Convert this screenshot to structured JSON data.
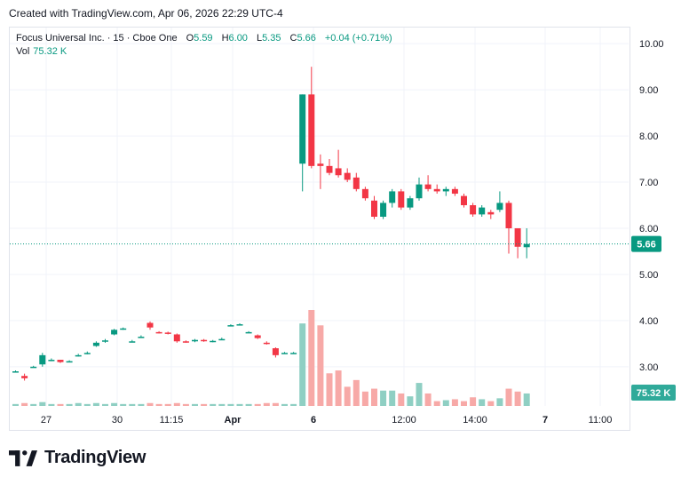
{
  "header": {
    "created_text": "Created with TradingView.com, Apr 06, 2026 22:29 UTC-4"
  },
  "legend": {
    "symbol": "Focus Universal Inc. · 15 · Cboe One",
    "open_label": "O",
    "open": "5.59",
    "high_label": "H",
    "high": "6.00",
    "low_label": "L",
    "low": "5.35",
    "close_label": "C",
    "close": "5.66",
    "change": "+0.04 (+0.71%)",
    "vol_label": "Vol",
    "vol": "75.32 K"
  },
  "brand": {
    "name": "TradingView"
  },
  "colors": {
    "up": "#089981",
    "down": "#f23645",
    "vol_up": "#8fcfc3",
    "vol_down": "#f7a9a7",
    "last_price": "#089981"
  },
  "chart_data": {
    "type": "candlestick",
    "y_ticks": [
      "10.00",
      "9.00",
      "8.00",
      "7.00",
      "6.00",
      "5.00",
      "4.00",
      "3.00"
    ],
    "y_range": [
      2.15,
      10.35
    ],
    "x_ticks": [
      "27",
      "30",
      "11:15",
      "Apr",
      "6",
      "12:00",
      "14:00",
      "7",
      "11:00"
    ],
    "last_price": "5.66",
    "last_volume": "75.32 K",
    "candles": [
      [
        2.9,
        2.92,
        2.88,
        2.9
      ],
      [
        2.8,
        2.85,
        2.7,
        2.75
      ],
      [
        3.0,
        3.02,
        2.98,
        3.0
      ],
      [
        3.05,
        3.3,
        3.0,
        3.25
      ],
      [
        3.15,
        3.18,
        3.12,
        3.15
      ],
      [
        3.15,
        3.15,
        3.08,
        3.1
      ],
      [
        3.12,
        3.14,
        3.1,
        3.12
      ],
      [
        3.25,
        3.28,
        3.22,
        3.25
      ],
      [
        3.3,
        3.33,
        3.27,
        3.3
      ],
      [
        3.45,
        3.55,
        3.43,
        3.52
      ],
      [
        3.55,
        3.6,
        3.52,
        3.57
      ],
      [
        3.7,
        3.82,
        3.68,
        3.8
      ],
      [
        3.82,
        3.85,
        3.8,
        3.83
      ],
      [
        3.55,
        3.58,
        3.53,
        3.55
      ],
      [
        3.65,
        3.68,
        3.63,
        3.65
      ],
      [
        3.95,
        3.98,
        3.8,
        3.85
      ],
      [
        3.75,
        3.77,
        3.72,
        3.74
      ],
      [
        3.74,
        3.76,
        3.7,
        3.72
      ],
      [
        3.7,
        3.72,
        3.52,
        3.55
      ],
      [
        3.55,
        3.57,
        3.52,
        3.54
      ],
      [
        3.55,
        3.6,
        3.53,
        3.58
      ],
      [
        3.58,
        3.6,
        3.54,
        3.56
      ],
      [
        3.55,
        3.58,
        3.53,
        3.56
      ],
      [
        3.6,
        3.63,
        3.58,
        3.6
      ],
      [
        3.9,
        3.92,
        3.88,
        3.9
      ],
      [
        3.92,
        3.94,
        3.9,
        3.92
      ],
      [
        3.75,
        3.77,
        3.73,
        3.75
      ],
      [
        3.68,
        3.7,
        3.6,
        3.62
      ],
      [
        3.52,
        3.55,
        3.48,
        3.5
      ],
      [
        3.4,
        3.42,
        3.2,
        3.25
      ],
      [
        3.3,
        3.32,
        3.28,
        3.3
      ],
      [
        3.3,
        3.32,
        3.28,
        3.3
      ],
      [
        7.4,
        8.9,
        6.8,
        8.9
      ],
      [
        8.9,
        9.5,
        7.3,
        7.35
      ],
      [
        7.4,
        7.6,
        6.85,
        7.35
      ],
      [
        7.35,
        7.5,
        7.15,
        7.2
      ],
      [
        7.3,
        7.7,
        7.1,
        7.15
      ],
      [
        7.2,
        7.3,
        7.0,
        7.05
      ],
      [
        7.1,
        7.2,
        6.8,
        6.85
      ],
      [
        6.85,
        6.9,
        6.6,
        6.65
      ],
      [
        6.6,
        6.7,
        6.2,
        6.25
      ],
      [
        6.25,
        6.6,
        6.2,
        6.55
      ],
      [
        6.55,
        6.85,
        6.45,
        6.8
      ],
      [
        6.8,
        6.85,
        6.4,
        6.45
      ],
      [
        6.45,
        6.7,
        6.4,
        6.65
      ],
      [
        6.65,
        7.1,
        6.6,
        6.95
      ],
      [
        6.95,
        7.15,
        6.8,
        6.85
      ],
      [
        6.85,
        6.95,
        6.75,
        6.8
      ],
      [
        6.8,
        6.9,
        6.7,
        6.85
      ],
      [
        6.85,
        6.9,
        6.7,
        6.75
      ],
      [
        6.7,
        6.75,
        6.45,
        6.5
      ],
      [
        6.5,
        6.55,
        6.25,
        6.3
      ],
      [
        6.3,
        6.5,
        6.25,
        6.45
      ],
      [
        6.35,
        6.4,
        6.2,
        6.3
      ],
      [
        6.4,
        6.8,
        6.35,
        6.55
      ],
      [
        6.55,
        6.6,
        5.45,
        6.0
      ],
      [
        6.0,
        6.0,
        5.35,
        5.6
      ],
      [
        5.59,
        6.0,
        5.35,
        5.66
      ]
    ],
    "volume": [
      0.02,
      0.03,
      0.02,
      0.04,
      0.02,
      0.02,
      0.02,
      0.03,
      0.02,
      0.03,
      0.02,
      0.03,
      0.02,
      0.02,
      0.02,
      0.03,
      0.02,
      0.02,
      0.03,
      0.02,
      0.02,
      0.02,
      0.02,
      0.02,
      0.02,
      0.02,
      0.02,
      0.02,
      0.03,
      0.03,
      0.02,
      0.02,
      0.86,
      1.0,
      0.84,
      0.34,
      0.37,
      0.2,
      0.27,
      0.15,
      0.18,
      0.16,
      0.16,
      0.13,
      0.1,
      0.24,
      0.13,
      0.05,
      0.06,
      0.07,
      0.05,
      0.09,
      0.07,
      0.05,
      0.08,
      0.18,
      0.15,
      0.13
    ]
  }
}
